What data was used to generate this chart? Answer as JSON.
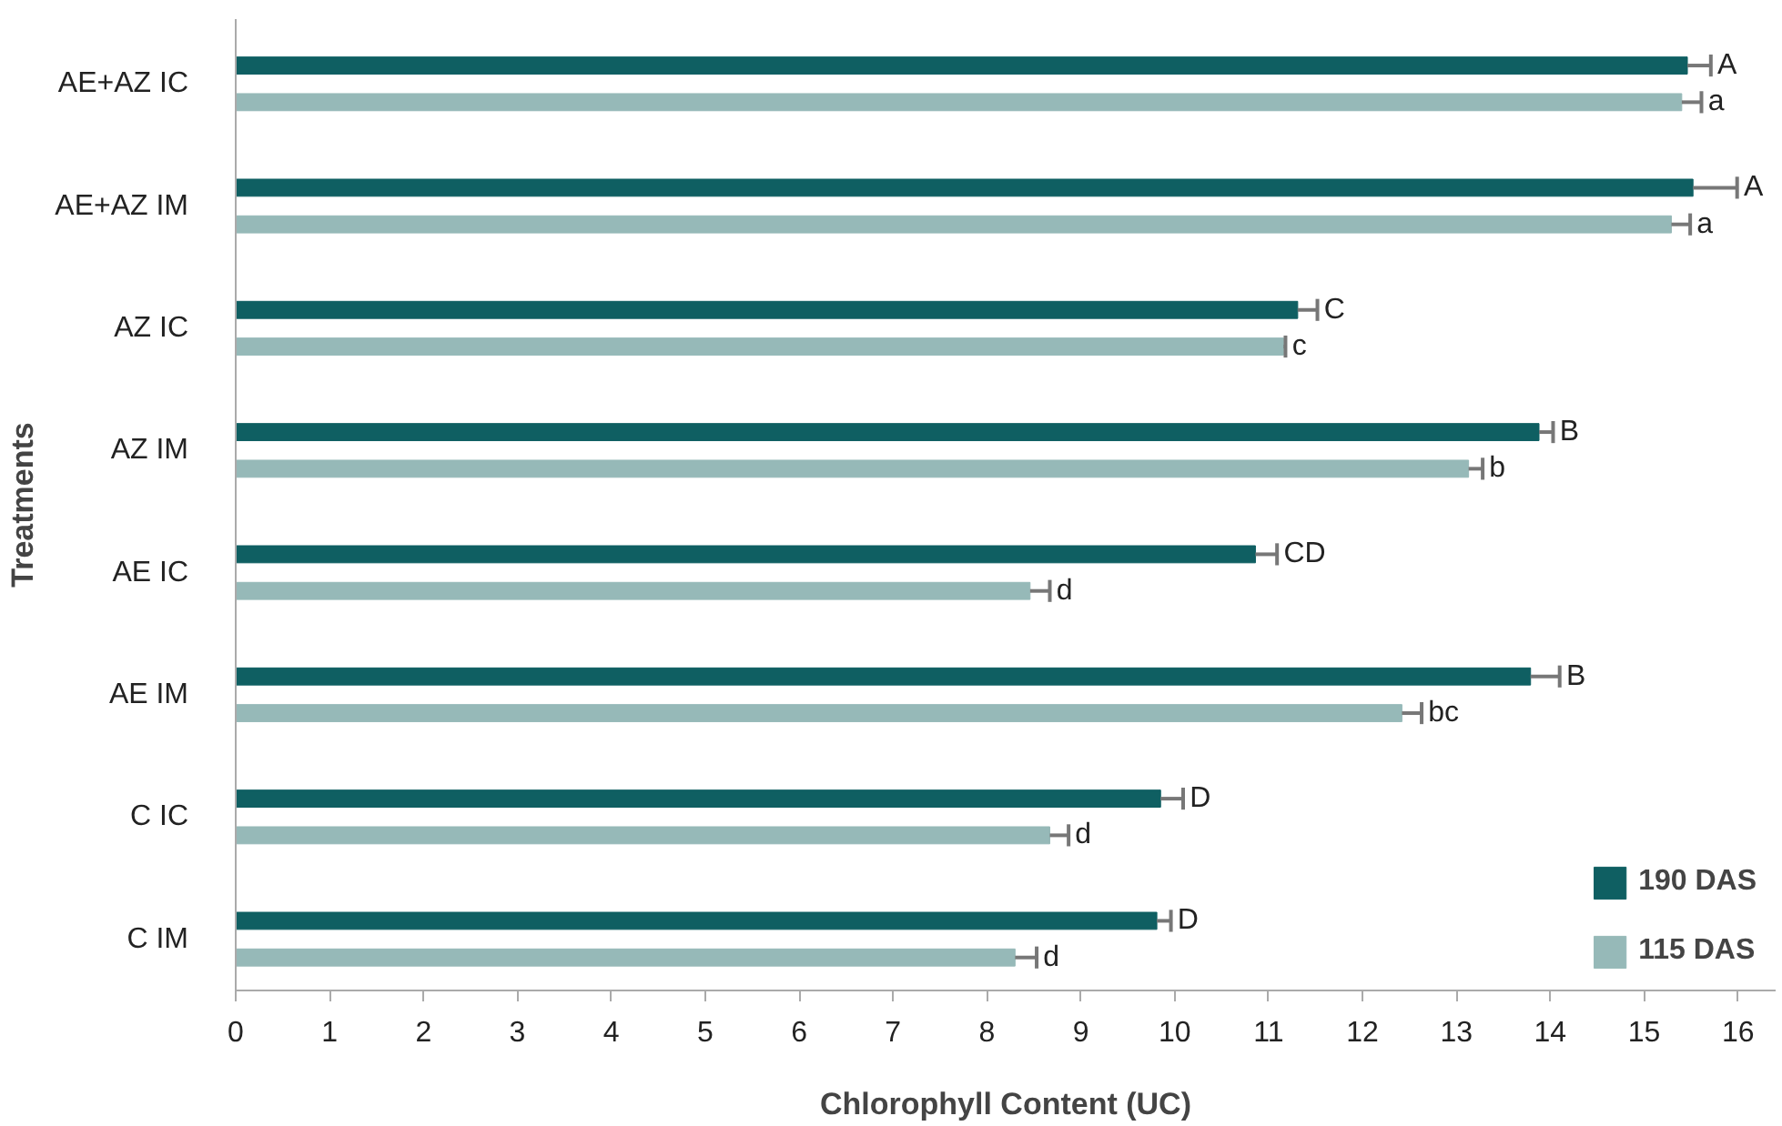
{
  "chart_data": {
    "type": "bar",
    "orientation": "horizontal",
    "xlabel": "Chlorophyll Content (UC)",
    "ylabel": "Treatments",
    "categories": [
      "AE+AZ IC",
      "AE+AZ IM",
      "AZ IC",
      "AZ IM",
      "AE IC",
      "AE IM",
      "C IC",
      "C IM"
    ],
    "series": [
      {
        "name": "190 DAS",
        "color": "#0f5f62",
        "values": [
          15.46,
          15.52,
          11.31,
          13.88,
          10.86,
          13.79,
          9.85,
          9.81
        ],
        "errors": [
          [
            15.46,
            15.71
          ],
          [
            15.52,
            15.99
          ],
          [
            11.31,
            11.52
          ],
          [
            13.88,
            14.03
          ],
          [
            10.86,
            11.09
          ],
          [
            13.79,
            14.1
          ],
          [
            9.85,
            10.09
          ],
          [
            9.81,
            9.96
          ]
        ],
        "value_labels": [
          "A",
          "A",
          "C",
          "B",
          "CD",
          "B",
          "D",
          "D"
        ]
      },
      {
        "name": "115 DAS",
        "color": "#96b9b8",
        "values": [
          15.4,
          15.29,
          11.16,
          13.13,
          8.46,
          12.42,
          8.67,
          8.3
        ],
        "errors": [
          [
            15.4,
            15.61
          ],
          [
            15.29,
            15.49
          ],
          [
            11.16,
            11.18
          ],
          [
            13.13,
            13.28
          ],
          [
            8.46,
            8.67
          ],
          [
            12.42,
            12.63
          ],
          [
            8.67,
            8.87
          ],
          [
            8.3,
            8.53
          ]
        ],
        "value_labels": [
          "a",
          "a",
          "c",
          "b",
          "d",
          "bc",
          "d",
          "d"
        ]
      }
    ],
    "xlim": [
      0,
      16.4
    ],
    "xticks": [
      0,
      1,
      2,
      3,
      4,
      5,
      6,
      7,
      8,
      9,
      10,
      11,
      12,
      13,
      14,
      15,
      16
    ],
    "grid": false,
    "legend": "bottom right"
  }
}
